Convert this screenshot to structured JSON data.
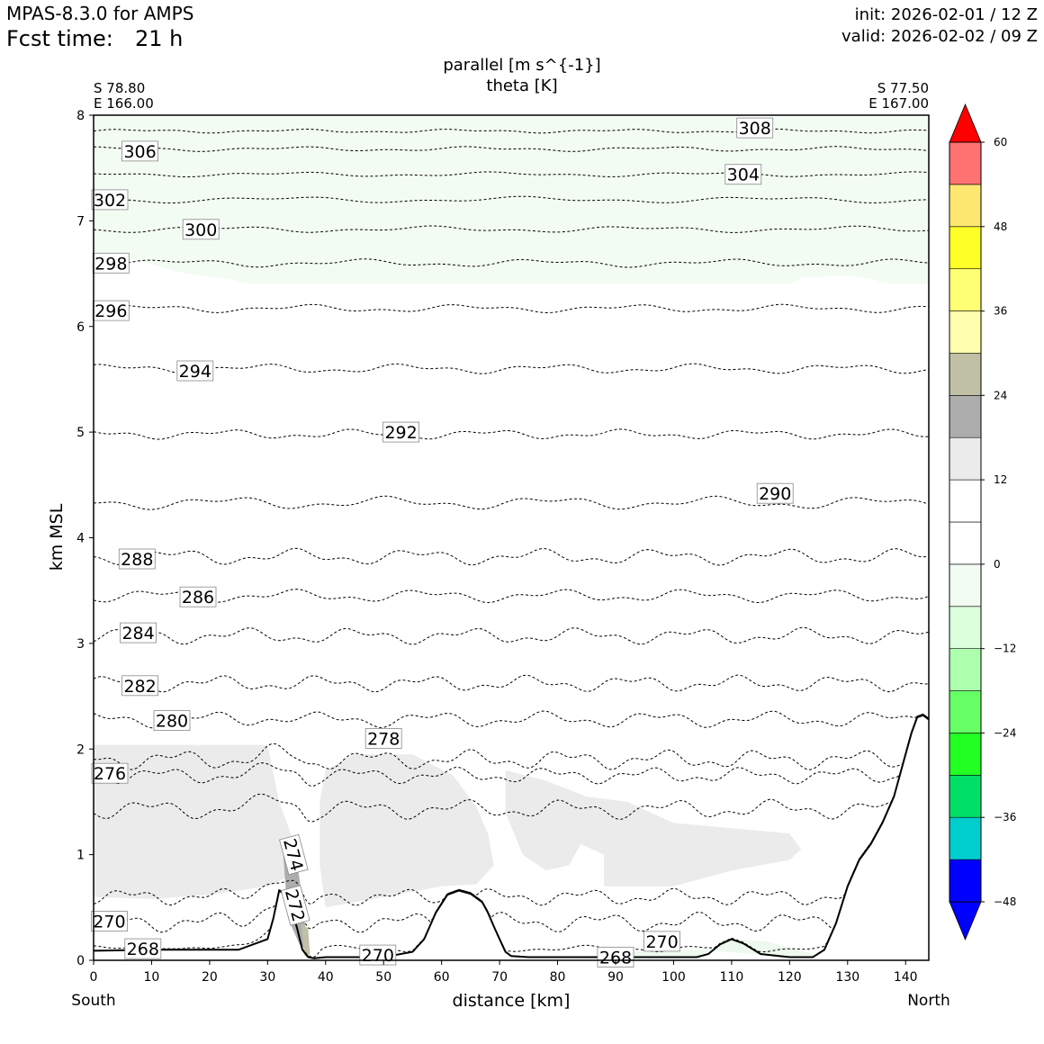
{
  "header": {
    "model": "MPAS-8.3.0 for AMPS",
    "fcst_label": "Fcst time:",
    "fcst_value": "21 h",
    "init": "init: 2026-02-01 / 12 Z",
    "valid": "valid: 2026-02-02 / 09 Z"
  },
  "chart_data": {
    "type": "contour",
    "title_line1": "parallel [m s^{-1}]",
    "title_line2": "theta [K]",
    "xlabel": "distance [km]",
    "ylabel": "km MSL",
    "xlim": [
      0,
      144
    ],
    "ylim": [
      0,
      8
    ],
    "x_ticks": [
      0,
      10,
      20,
      30,
      40,
      50,
      60,
      70,
      80,
      90,
      100,
      110,
      120,
      130,
      140
    ],
    "y_ticks": [
      0,
      1,
      2,
      3,
      4,
      5,
      6,
      7,
      8
    ],
    "start_label_line1": "S 78.80",
    "start_label_line2": "E 166.00",
    "end_label_line1": "S 77.50",
    "end_label_line2": "E 167.00",
    "left_end": "South",
    "right_end": "North",
    "terrain": {
      "x": [
        0,
        10,
        20,
        25,
        28,
        30,
        31,
        32,
        33,
        34,
        35,
        36,
        37,
        38,
        40,
        45,
        50,
        55,
        57,
        59,
        61,
        63,
        65,
        67,
        68,
        69,
        70,
        71,
        72,
        75,
        80,
        90,
        100,
        104,
        106,
        108,
        110,
        112,
        115,
        120,
        124,
        126,
        128,
        130,
        132,
        134,
        136,
        138,
        140,
        141,
        142,
        143,
        144
      ],
      "y": [
        0.09,
        0.1,
        0.1,
        0.1,
        0.16,
        0.2,
        0.4,
        0.66,
        0.62,
        0.5,
        0.32,
        0.1,
        0.03,
        0.02,
        0.03,
        0.03,
        0.03,
        0.08,
        0.2,
        0.45,
        0.62,
        0.66,
        0.63,
        0.55,
        0.45,
        0.32,
        0.2,
        0.08,
        0.04,
        0.03,
        0.03,
        0.03,
        0.03,
        0.03,
        0.06,
        0.15,
        0.2,
        0.16,
        0.06,
        0.03,
        0.03,
        0.1,
        0.35,
        0.7,
        0.95,
        1.1,
        1.3,
        1.55,
        1.95,
        2.15,
        2.3,
        2.32,
        2.28
      ]
    },
    "theta_contours": [
      {
        "level": "308",
        "base": 7.85,
        "amp": 0.012,
        "freq": 0.9,
        "label_x": 114,
        "label_y": 7.88
      },
      {
        "level": "306",
        "base": 7.68,
        "amp": 0.015,
        "freq": 0.8,
        "label_x": 8,
        "label_y": 7.66
      },
      {
        "level": "304",
        "base": 7.44,
        "amp": 0.015,
        "freq": 0.7,
        "label_x": 112,
        "label_y": 7.44
      },
      {
        "level": "302",
        "base": 7.2,
        "amp": 0.02,
        "freq": 0.6,
        "label_x": 2.8,
        "label_y": 7.2
      },
      {
        "level": "300",
        "base": 6.92,
        "amp": 0.02,
        "freq": 0.7,
        "label_x": 18.5,
        "label_y": 6.92
      },
      {
        "level": "298",
        "base": 6.6,
        "amp": 0.025,
        "freq": 0.8,
        "label_x": 3,
        "label_y": 6.6
      },
      {
        "level": "296",
        "base": 6.17,
        "amp": 0.025,
        "freq": 0.9,
        "label_x": 3,
        "label_y": 6.15
      },
      {
        "level": "294",
        "base": 5.6,
        "amp": 0.03,
        "freq": 1.0,
        "label_x": 17.5,
        "label_y": 5.58
      },
      {
        "level": "292",
        "base": 4.98,
        "amp": 0.03,
        "freq": 1.1,
        "label_x": 53,
        "label_y": 5.0
      },
      {
        "level": "290",
        "base": 4.33,
        "amp": 0.04,
        "freq": 0.9,
        "label_x": 117.5,
        "label_y": 4.42
      },
      {
        "level": "288",
        "base": 3.82,
        "amp": 0.05,
        "freq": 1.2,
        "label_x": 7.5,
        "label_y": 3.8
      },
      {
        "level": "286",
        "base": 3.45,
        "amp": 0.04,
        "freq": 1.1,
        "label_x": 18,
        "label_y": 3.44
      },
      {
        "level": "284",
        "base": 3.07,
        "amp": 0.05,
        "freq": 1.3,
        "label_x": 7.7,
        "label_y": 3.1
      },
      {
        "level": "282",
        "base": 2.62,
        "amp": 0.05,
        "freq": 1.4,
        "label_x": 8,
        "label_y": 2.6
      },
      {
        "level": "280",
        "base": 2.28,
        "amp": 0.05,
        "freq": 1.3,
        "label_x": 13.5,
        "label_y": 2.27
      },
      {
        "level": "278",
        "base": 1.9,
        "amp": 0.06,
        "freq": 1.5,
        "label_x": 50,
        "label_y": 2.1
      },
      {
        "level": "276",
        "base": 1.75,
        "amp": 0.05,
        "freq": 1.5,
        "label_x": 2.8,
        "label_y": 1.77
      },
      {
        "level": "274",
        "base": 1.43,
        "amp": 0.06,
        "freq": 1.4,
        "label_x": 34.5,
        "label_y": 1.0
      },
      {
        "level": "272",
        "base": 0.6,
        "amp": 0.05,
        "freq": 1.6,
        "label_x": 34.8,
        "label_y": 0.52
      },
      {
        "level": "270",
        "base": 0.36,
        "amp": 0.06,
        "freq": 1.5,
        "label_x": 2.7,
        "label_y": 0.37
      },
      {
        "level": "268",
        "base": 0.11,
        "amp": 0.02,
        "freq": 1.2,
        "label_x": 8.5,
        "label_y": 0.11
      }
    ],
    "extra_labels": [
      {
        "level": "270",
        "x": 49,
        "y": 0.05
      },
      {
        "level": "270",
        "x": 98,
        "y": 0.18
      },
      {
        "level": "268",
        "x": 90,
        "y": 0.03
      }
    ],
    "shading": [
      {
        "name": "upper-light-green",
        "level": "-6 to 0",
        "color": "#f3fcf3"
      },
      {
        "name": "low-level-light-gray",
        "level": "6 to 12",
        "color": "#ebebeb"
      },
      {
        "name": "low-level-dark-gray",
        "level": "12 to 18",
        "color": "#adadad"
      },
      {
        "name": "valley-tan",
        "level": "18 to 24",
        "color": "#c0c0a4"
      },
      {
        "name": "surface-light-green",
        "level": "-6 to 0",
        "color": "#eef9ee"
      }
    ],
    "colorbar": {
      "labels": [
        "60",
        "48",
        "36",
        "24",
        "12",
        "0",
        "−12",
        "−24",
        "−36",
        "−48"
      ],
      "colors": [
        "#0000ff",
        "#00cdcd",
        "#00e066",
        "#22ff22",
        "#66ff66",
        "#adffad",
        "#dcffdc",
        "#f3fcf3",
        "#ffffff",
        "#ffffff",
        "#ebebeb",
        "#adadad",
        "#c0c0a4",
        "#ffffae",
        "#ffff75",
        "#ffff28",
        "#ffe872",
        "#ff7272",
        "#ff0000"
      ],
      "under_color": "#0000ff",
      "over_color": "#ff0000"
    }
  }
}
